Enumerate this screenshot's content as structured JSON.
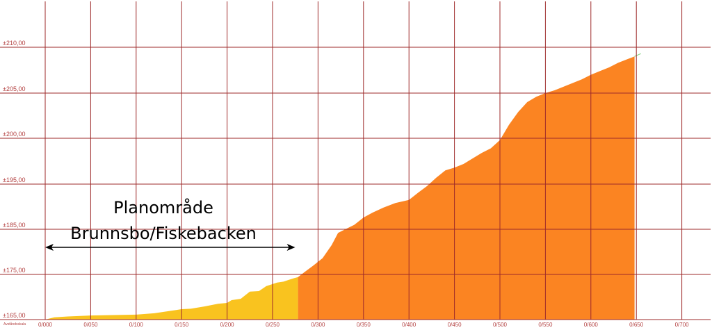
{
  "chart_data": {
    "type": "area",
    "title": "",
    "xlabel": "",
    "ylabel": "",
    "axis_corner_label": "Avståndsskala",
    "x_ticks": [
      "0/000",
      "0/050",
      "0/100",
      "0/150",
      "0/200",
      "0/250",
      "0/300",
      "0/350",
      "0/400",
      "0/450",
      "0/500",
      "0/550",
      "0/600",
      "0/650",
      "0/700"
    ],
    "y_ticks": [
      {
        "label": "165,00"
      },
      {
        "label": "175,00"
      },
      {
        "label": "185,00"
      },
      {
        "label": "195,00"
      },
      {
        "label": "200,00"
      },
      {
        "label": "205,00"
      },
      {
        "label": "210,00"
      }
    ],
    "y_tick_prefix": "±",
    "xlim": [
      0,
      750
    ],
    "grid": true,
    "series": [
      {
        "color": "#f9c31f",
        "points": [
          [
            0,
            165.0
          ],
          [
            10,
            165.5
          ],
          [
            25,
            165.7
          ],
          [
            50,
            165.9
          ],
          [
            75,
            166.0
          ],
          [
            100,
            166.1
          ],
          [
            120,
            166.4
          ],
          [
            140,
            167.0
          ],
          [
            150,
            167.3
          ],
          [
            160,
            167.4
          ],
          [
            175,
            167.9
          ],
          [
            190,
            168.5
          ],
          [
            200,
            168.7
          ],
          [
            205,
            169.3
          ],
          [
            215,
            169.6
          ],
          [
            225,
            171.2
          ],
          [
            235,
            171.3
          ],
          [
            243,
            172.4
          ],
          [
            255,
            173.2
          ],
          [
            262,
            173.4
          ],
          [
            268,
            173.8
          ],
          [
            274,
            174.2
          ],
          [
            278,
            174.4
          ]
        ]
      },
      {
        "color": "#fb8422",
        "points": [
          [
            278,
            174.4
          ],
          [
            285,
            175.5
          ],
          [
            295,
            177.0
          ],
          [
            305,
            178.6
          ],
          [
            315,
            181.5
          ],
          [
            322,
            184.2
          ],
          [
            330,
            185.0
          ],
          [
            340,
            186.0
          ],
          [
            350,
            187.6
          ],
          [
            360,
            188.7
          ],
          [
            372,
            189.8
          ],
          [
            385,
            190.8
          ],
          [
            400,
            191.5
          ],
          [
            410,
            193.1
          ],
          [
            420,
            194.6
          ],
          [
            430,
            195.7
          ],
          [
            440,
            196.5
          ],
          [
            450,
            196.8
          ],
          [
            460,
            197.2
          ],
          [
            470,
            197.8
          ],
          [
            480,
            198.4
          ],
          [
            490,
            198.9
          ],
          [
            500,
            199.8
          ],
          [
            510,
            201.5
          ],
          [
            520,
            202.9
          ],
          [
            530,
            204.0
          ],
          [
            540,
            204.6
          ],
          [
            550,
            205.0
          ],
          [
            560,
            205.3
          ],
          [
            570,
            205.7
          ],
          [
            580,
            206.1
          ],
          [
            590,
            206.5
          ],
          [
            600,
            207.0
          ],
          [
            610,
            207.4
          ],
          [
            620,
            207.8
          ],
          [
            630,
            208.3
          ],
          [
            640,
            208.7
          ],
          [
            648,
            209.0
          ]
        ]
      },
      {
        "color": "#8fd68c",
        "points": [
          [
            648,
            209.0
          ],
          [
            655,
            209.3
          ]
        ]
      }
    ],
    "annotations": [
      {
        "lines": [
          "Planområde",
          "Brunnsbo/Fiskebacken"
        ],
        "arrow": "double",
        "x_start": 0,
        "x_end": 278
      }
    ]
  }
}
